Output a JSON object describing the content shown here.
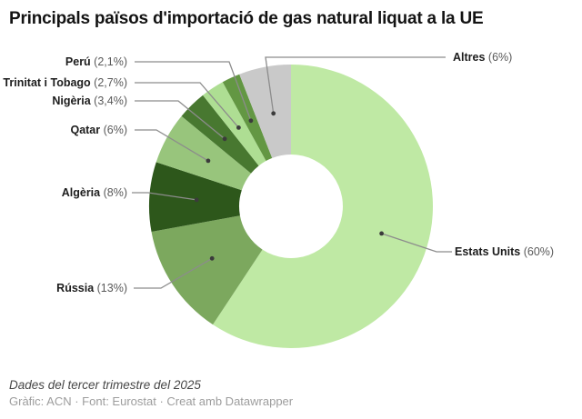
{
  "header": {
    "title": "Principals països d'importació de gas natural liquat a la UE"
  },
  "chart_data": {
    "type": "pie",
    "subtype": "donut",
    "title": "Principals països d'importació de gas natural liquat a la UE",
    "categories": [
      "Estats Units",
      "Rússia",
      "Algèria",
      "Qatar",
      "Nigèria",
      "Trinitat i Tobago",
      "Perú",
      "Altres"
    ],
    "values": [
      60,
      13,
      8,
      6,
      3.4,
      2.7,
      2.1,
      6
    ],
    "value_labels": [
      "(60%)",
      "(13%)",
      "(8%)",
      "(6%)",
      "(3,4%)",
      "(2,7%)",
      "(2,1%)",
      "(6%)"
    ],
    "colors": [
      "#bfe9a4",
      "#7ca85e",
      "#2d571b",
      "#98c57c",
      "#487830",
      "#aede93",
      "#639743",
      "#c9c9c9"
    ],
    "start_angle_deg": 0,
    "direction": "clockwise",
    "donut_hole_ratio": 0.37,
    "legend_position": "none",
    "labels_style": "outside-with-leader-lines"
  },
  "footer": {
    "note": "Dades del tercer trimestre del 2025",
    "byline": "Gràfic: ACN · Font: Eurostat · Creat amb Datawrapper"
  }
}
